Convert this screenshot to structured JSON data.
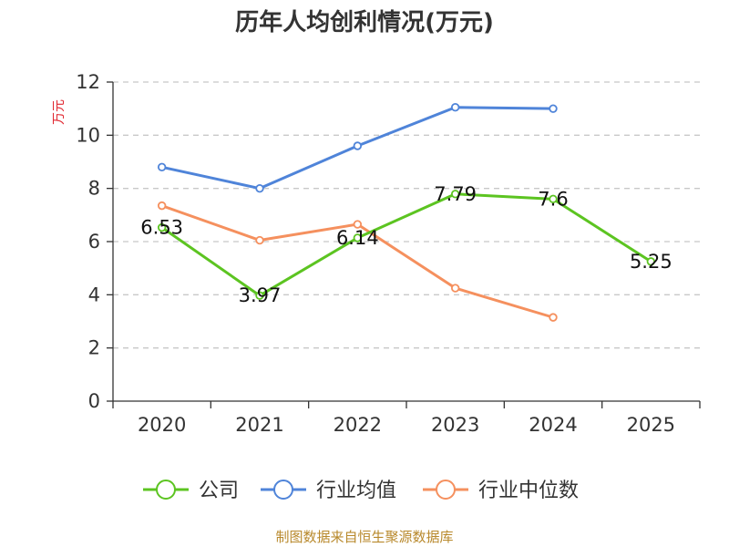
{
  "chart_data": {
    "type": "line",
    "title": "历年人均创利情况(万元)",
    "ylabel": "万元",
    "categories": [
      "2020",
      "2021",
      "2022",
      "2023",
      "2024",
      "2025"
    ],
    "y_ticks": [
      "0",
      "2",
      "4",
      "6",
      "8",
      "10",
      "12"
    ],
    "ylim": [
      0,
      12
    ],
    "grid": true,
    "legend_position": "bottom",
    "series": [
      {
        "name": "公司",
        "color": "#5cc421",
        "values": [
          6.53,
          3.97,
          6.14,
          7.79,
          7.6,
          5.25
        ],
        "labels": [
          "6.53",
          "3.97",
          "6.14",
          "7.79",
          "7.6",
          "5.25"
        ]
      },
      {
        "name": "行业均值",
        "color": "#4f84d9",
        "values": [
          8.8,
          8.0,
          9.6,
          11.05,
          11.0,
          null
        ]
      },
      {
        "name": "行业中位数",
        "color": "#f5905e",
        "values": [
          7.35,
          6.05,
          6.65,
          4.25,
          3.15,
          null
        ]
      }
    ]
  },
  "source": "制图数据来自恒生聚源数据库"
}
